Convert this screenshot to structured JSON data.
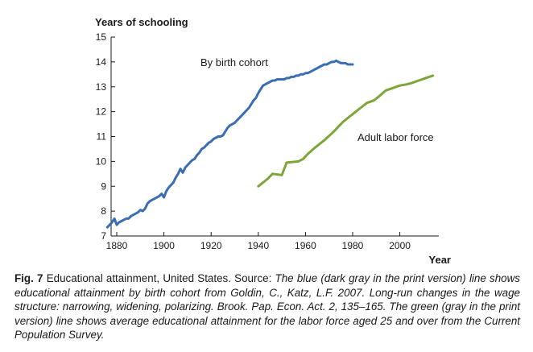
{
  "chart_data": {
    "type": "line",
    "title": "",
    "ylabel": "Years of schooling",
    "xlabel": "Year",
    "xlim": [
      1875,
      2015
    ],
    "ylim": [
      7,
      15
    ],
    "xticks": [
      1880,
      1900,
      1920,
      1940,
      1960,
      1980,
      2000
    ],
    "yticks": [
      7,
      8,
      9,
      10,
      11,
      12,
      13,
      14,
      15
    ],
    "grid": false,
    "series": [
      {
        "name": "By birth cohort",
        "color": "#3b6db3",
        "x": [
          1876,
          1877,
          1878,
          1879,
          1880,
          1881,
          1882,
          1883,
          1884,
          1885,
          1886,
          1887,
          1888,
          1889,
          1890,
          1891,
          1892,
          1893,
          1894,
          1895,
          1896,
          1897,
          1898,
          1899,
          1900,
          1901,
          1902,
          1903,
          1904,
          1905,
          1906,
          1907,
          1908,
          1909,
          1910,
          1911,
          1912,
          1913,
          1914,
          1915,
          1916,
          1917,
          1918,
          1919,
          1920,
          1921,
          1922,
          1923,
          1924,
          1925,
          1926,
          1927,
          1928,
          1929,
          1930,
          1931,
          1932,
          1933,
          1934,
          1935,
          1936,
          1937,
          1938,
          1939,
          1940,
          1941,
          1942,
          1943,
          1944,
          1945,
          1946,
          1947,
          1948,
          1949,
          1950,
          1951,
          1952,
          1953,
          1954,
          1955,
          1956,
          1957,
          1958,
          1959,
          1960,
          1961,
          1962,
          1963,
          1964,
          1965,
          1966,
          1967,
          1968,
          1969,
          1970,
          1971,
          1972,
          1973,
          1974,
          1975,
          1976,
          1977,
          1978,
          1979,
          1980
        ],
        "y": [
          7.35,
          7.45,
          7.55,
          7.7,
          7.45,
          7.55,
          7.6,
          7.65,
          7.7,
          7.7,
          7.8,
          7.85,
          7.9,
          7.95,
          8.05,
          8.0,
          8.1,
          8.3,
          8.4,
          8.45,
          8.5,
          8.55,
          8.6,
          8.7,
          8.55,
          8.8,
          8.95,
          9.05,
          9.15,
          9.35,
          9.5,
          9.7,
          9.55,
          9.75,
          9.85,
          9.95,
          10.05,
          10.1,
          10.25,
          10.35,
          10.5,
          10.55,
          10.65,
          10.75,
          10.8,
          10.9,
          10.95,
          11.0,
          11.0,
          11.05,
          11.2,
          11.35,
          11.45,
          11.5,
          11.55,
          11.65,
          11.75,
          11.85,
          11.95,
          12.05,
          12.15,
          12.3,
          12.45,
          12.55,
          12.75,
          12.9,
          13.05,
          13.1,
          13.15,
          13.2,
          13.25,
          13.25,
          13.3,
          13.3,
          13.3,
          13.3,
          13.35,
          13.35,
          13.4,
          13.4,
          13.45,
          13.45,
          13.5,
          13.5,
          13.55,
          13.55,
          13.6,
          13.65,
          13.7,
          13.75,
          13.8,
          13.85,
          13.9,
          13.9,
          13.95,
          14.0,
          14.0,
          14.05,
          14.0,
          13.95,
          13.95,
          13.95,
          13.9,
          13.9,
          13.9
        ]
      },
      {
        "name": "Adult labor force",
        "color": "#7ea53a",
        "x": [
          1940,
          1944,
          1946,
          1950,
          1952,
          1957,
          1959,
          1961,
          1964,
          1968,
          1972,
          1976,
          1980,
          1984,
          1986,
          1989,
          1991,
          1994,
          1997,
          2000,
          2003,
          2005,
          2008,
          2011,
          2014
        ],
        "y": [
          9.0,
          9.3,
          9.5,
          9.45,
          9.95,
          10.0,
          10.1,
          10.3,
          10.55,
          10.85,
          11.2,
          11.6,
          11.9,
          12.2,
          12.35,
          12.45,
          12.6,
          12.85,
          12.95,
          13.05,
          13.1,
          13.15,
          13.25,
          13.35,
          13.45
        ]
      }
    ]
  },
  "caption": {
    "fig_label": "Fig. 7",
    "lead": "Educational attainment, United States. Source: ",
    "source_text": "The blue (dark gray in the print version) line shows educational attainment by birth cohort from Goldin, C., Katz, L.F. 2007. Long-run changes in the wage structure: narrowing, widening, polarizing. Brook. Pap. Econ. Act. 2, 135–165. The green (gray in the print version) line shows average educational attainment for the labor force aged 25 and over from the Current Population Survey."
  }
}
